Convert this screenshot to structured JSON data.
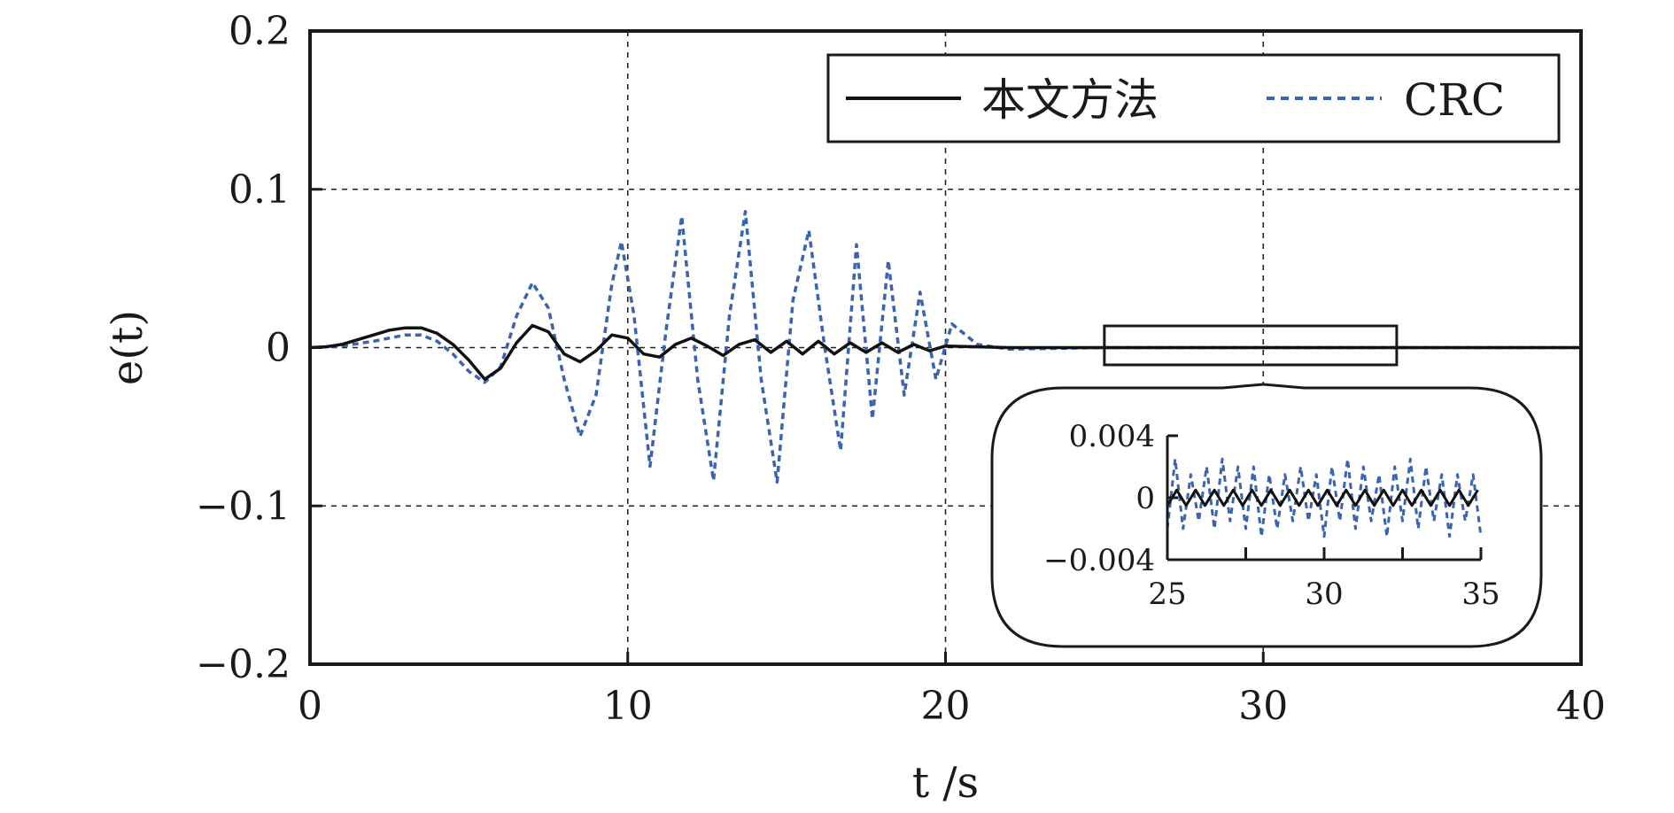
{
  "chart_data": {
    "type": "line",
    "title": "",
    "xlabel": "t /s",
    "ylabel": "e(t)",
    "xlim": [
      0,
      40
    ],
    "ylim": [
      -0.2,
      0.2
    ],
    "x_ticks": [
      "0",
      "10",
      "20",
      "30",
      "40"
    ],
    "y_ticks": [
      "0.2",
      "0.1",
      "0",
      "−0.1",
      "−0.2"
    ],
    "grid": "dashed",
    "legend": {
      "position": "top-right",
      "entries": [
        "本文方法",
        "CRC"
      ]
    },
    "colors": {
      "proposed": "#111111",
      "crc": "#3a63b0"
    },
    "series": [
      {
        "name": "本文方法",
        "style": "solid",
        "x": [
          0,
          0.5,
          1,
          1.5,
          2,
          2.5,
          3,
          3.5,
          4,
          4.5,
          5,
          5.5,
          6,
          6.5,
          7,
          7.5,
          8,
          8.5,
          9,
          9.5,
          10,
          10.5,
          11,
          11.5,
          12,
          12.5,
          13,
          13.5,
          14,
          14.5,
          15,
          15.5,
          16,
          16.5,
          17,
          17.5,
          18,
          18.5,
          19,
          19.5,
          20,
          21,
          22,
          25,
          30,
          35,
          40
        ],
        "y": [
          0,
          0.0005,
          0.002,
          0.005,
          0.008,
          0.011,
          0.0125,
          0.0125,
          0.009,
          0.002,
          -0.008,
          -0.02,
          -0.013,
          0.003,
          0.014,
          0.01,
          -0.004,
          -0.009,
          -0.002,
          0.008,
          0.006,
          -0.004,
          -0.006,
          0.002,
          0.006,
          0.001,
          -0.005,
          0.002,
          0.005,
          -0.003,
          0.004,
          -0.004,
          0.004,
          -0.004,
          0.003,
          -0.003,
          0.003,
          -0.003,
          0.002,
          -0.002,
          0.001,
          0.0005,
          0,
          0,
          0,
          0,
          0
        ]
      },
      {
        "name": "CRC",
        "style": "dashed",
        "x": [
          0,
          1,
          2,
          3,
          3.5,
          4,
          4.5,
          5,
          5.5,
          6,
          6.5,
          7,
          7.5,
          8,
          8.5,
          9,
          9.5,
          9.8,
          10.2,
          10.7,
          11.2,
          11.7,
          12.2,
          12.7,
          13.2,
          13.7,
          14.2,
          14.7,
          15.2,
          15.7,
          16.2,
          16.7,
          17.2,
          17.7,
          18.2,
          18.7,
          19.2,
          19.7,
          20.2,
          21,
          22,
          25,
          30,
          35,
          40
        ],
        "y": [
          0,
          0.001,
          0.004,
          0.008,
          0.008,
          0.004,
          -0.004,
          -0.015,
          -0.022,
          -0.012,
          0.02,
          0.041,
          0.025,
          -0.02,
          -0.056,
          -0.03,
          0.04,
          0.067,
          0.02,
          -0.075,
          0.01,
          0.083,
          -0.02,
          -0.084,
          0.02,
          0.086,
          -0.02,
          -0.085,
          0.03,
          0.074,
          0.0,
          -0.065,
          0.065,
          -0.045,
          0.055,
          -0.03,
          0.035,
          -0.02,
          0.015,
          0.002,
          -0.001,
          0,
          0,
          0,
          0
        ]
      }
    ],
    "inset": {
      "type": "line",
      "xlim": [
        25,
        35
      ],
      "ylim": [
        -0.004,
        0.004
      ],
      "x_ticks": [
        "25",
        "30",
        "35"
      ],
      "y_ticks": [
        "0.004",
        "0",
        "−0.004"
      ],
      "series": [
        {
          "name": "本文方法",
          "style": "solid",
          "x": [
            25,
            25.3,
            25.6,
            25.9,
            26.2,
            26.5,
            26.8,
            27.1,
            27.4,
            27.7,
            28.0,
            28.3,
            28.6,
            28.9,
            29.2,
            29.5,
            29.8,
            30.1,
            30.4,
            30.7,
            31.0,
            31.3,
            31.6,
            31.9,
            32.2,
            32.5,
            32.8,
            33.1,
            33.4,
            33.7,
            34.0,
            34.3,
            34.6,
            34.9
          ],
          "y": [
            -0.0005,
            0.0005,
            -0.0005,
            0.0005,
            -0.0005,
            0.0005,
            -0.0005,
            0.0005,
            -0.0005,
            0.0005,
            -0.0005,
            0.0005,
            -0.0005,
            0.0005,
            -0.0005,
            0.0005,
            -0.0005,
            0.0005,
            -0.0005,
            0.0005,
            -0.0005,
            0.0005,
            -0.0005,
            0.0005,
            -0.0005,
            0.0005,
            -0.0005,
            0.0005,
            -0.0005,
            0.0005,
            -0.0005,
            0.0005,
            -0.0005,
            0.0005
          ]
        },
        {
          "name": "CRC",
          "style": "dashed",
          "x": [
            25,
            25.25,
            25.5,
            25.75,
            26.0,
            26.25,
            26.5,
            26.75,
            27.0,
            27.25,
            27.5,
            27.75,
            28.0,
            28.25,
            28.5,
            28.75,
            29.0,
            29.25,
            29.5,
            29.75,
            30.0,
            30.25,
            30.5,
            30.75,
            31.0,
            31.25,
            31.5,
            31.75,
            32.0,
            32.25,
            32.5,
            32.75,
            33.0,
            33.25,
            33.5,
            33.75,
            34.0,
            34.25,
            34.5,
            34.75,
            35.0
          ],
          "y": [
            -0.002,
            0.0025,
            -0.002,
            0.0015,
            -0.0015,
            0.002,
            -0.002,
            0.0025,
            -0.0015,
            0.002,
            -0.002,
            0.002,
            -0.0025,
            0.0015,
            -0.002,
            0.0015,
            -0.0015,
            0.002,
            -0.0015,
            0.0015,
            -0.0025,
            0.002,
            -0.0015,
            0.0025,
            -0.002,
            0.002,
            -0.0015,
            0.0015,
            -0.0025,
            0.002,
            -0.0015,
            0.0025,
            -0.002,
            0.002,
            -0.0015,
            0.0015,
            -0.0025,
            0.0015,
            -0.0015,
            0.0015,
            -0.0025
          ]
        }
      ]
    }
  }
}
